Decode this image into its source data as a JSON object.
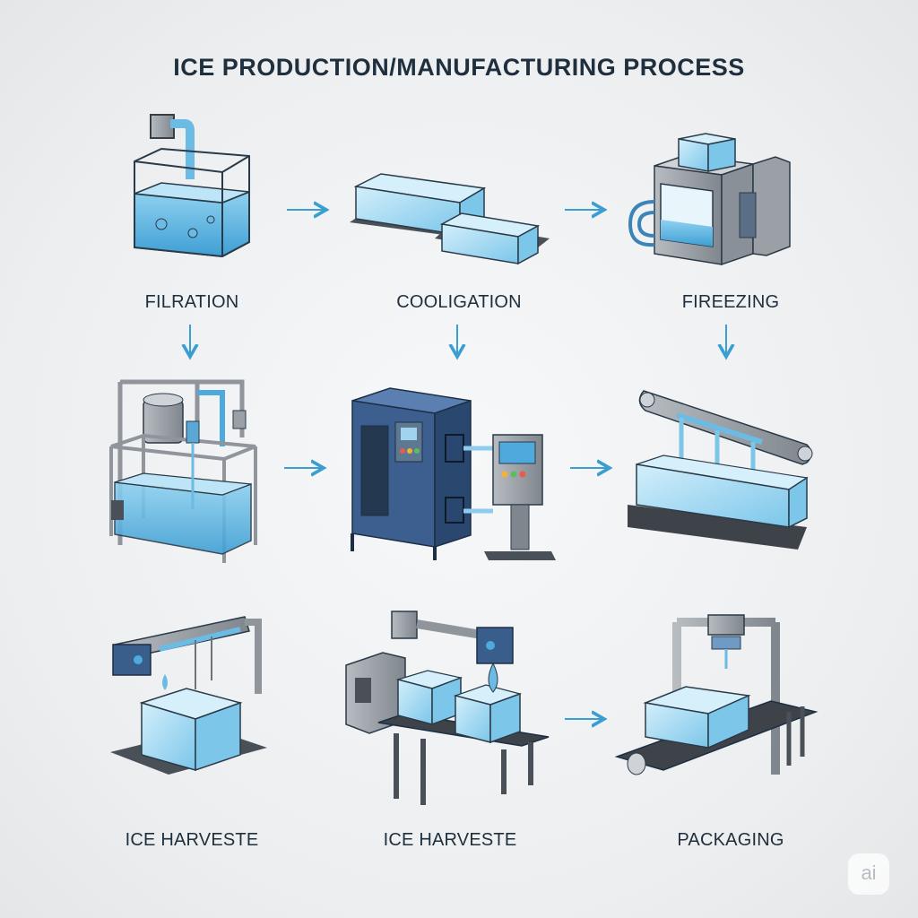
{
  "title": "ICE PRODUCTION/MANUFACTURING PROCESS",
  "steps": [
    {
      "label": "FILRATION",
      "icon": "water-tank-icon"
    },
    {
      "label": "COOLIGATION",
      "icon": "ice-blocks-icon"
    },
    {
      "label": "FIREEZING",
      "icon": "freezer-machine-icon"
    },
    {
      "label": "",
      "icon": "filtration-plant-icon"
    },
    {
      "label": "",
      "icon": "control-cabinet-icon"
    },
    {
      "label": "",
      "icon": "ice-conveyor-icon"
    },
    {
      "label": "ICE HARVESTE",
      "icon": "ice-harvester-icon"
    },
    {
      "label": "ICE HARVESTE",
      "icon": "ice-conveyor-belt-icon"
    },
    {
      "label": "PACKAGING",
      "icon": "packaging-station-icon"
    }
  ],
  "badge": "ai",
  "colors": {
    "accent": "#3a9fd0",
    "ice": "#a9dcf4",
    "steel": "#8f959b",
    "navy": "#2e4f7d"
  }
}
